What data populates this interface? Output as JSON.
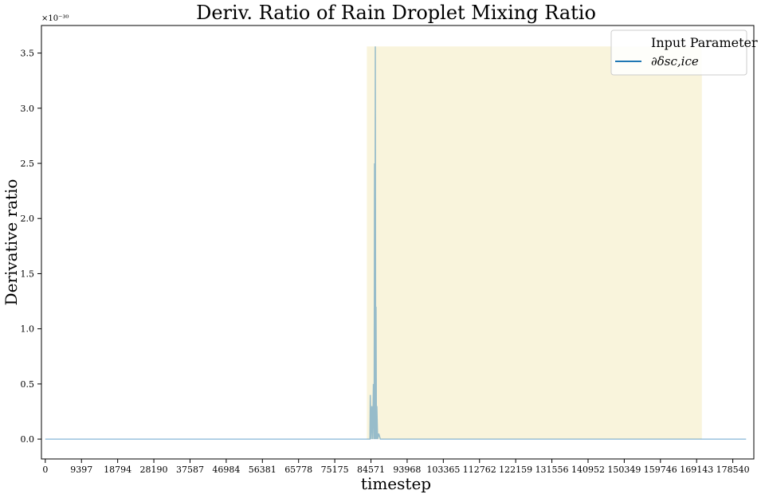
{
  "chart_data": {
    "type": "line",
    "title": "Deriv. Ratio of Rain Droplet Mixing Ratio",
    "xlabel": "timestep",
    "ylabel": "Derivative ratio",
    "y_offset_label": "×10⁻³⁰",
    "x_ticks": [
      0,
      9397,
      18794,
      28190,
      37587,
      46984,
      56381,
      65778,
      75175,
      84571,
      93968,
      103365,
      112762,
      122159,
      131556,
      140952,
      150349,
      159746,
      169143,
      178540
    ],
    "y_ticks": [
      "0.0",
      "0.5",
      "1.0",
      "1.5",
      "2.0",
      "2.5",
      "3.0",
      "3.5"
    ],
    "xlim": [
      -1000,
      184000
    ],
    "ylim": [
      -0.18,
      3.75
    ],
    "legend": {
      "title": "Input Parameter",
      "position": "top-right",
      "entries": [
        "∂δsc,ice"
      ]
    },
    "shaded_region": {
      "x_start": 83500,
      "x_end": 170500,
      "y_top": 3.56,
      "color": "#f9f4dc"
    },
    "series": [
      {
        "name": "∂δsc,ice",
        "color": "#1f77b4",
        "x": [
          0,
          84000,
          84300,
          84400,
          84600,
          84800,
          85000,
          85200,
          85400,
          85500,
          85600,
          85700,
          85800,
          85900,
          86000,
          86100,
          86300,
          86600,
          87000,
          100000,
          130000,
          160000,
          178000,
          182000
        ],
        "values": [
          0,
          0,
          0,
          0.4,
          0,
          0.3,
          0,
          0.5,
          0,
          2.5,
          0,
          3.56,
          0,
          1.2,
          0,
          0.3,
          0,
          0.05,
          0,
          0,
          0,
          0,
          0,
          0
        ]
      }
    ]
  }
}
